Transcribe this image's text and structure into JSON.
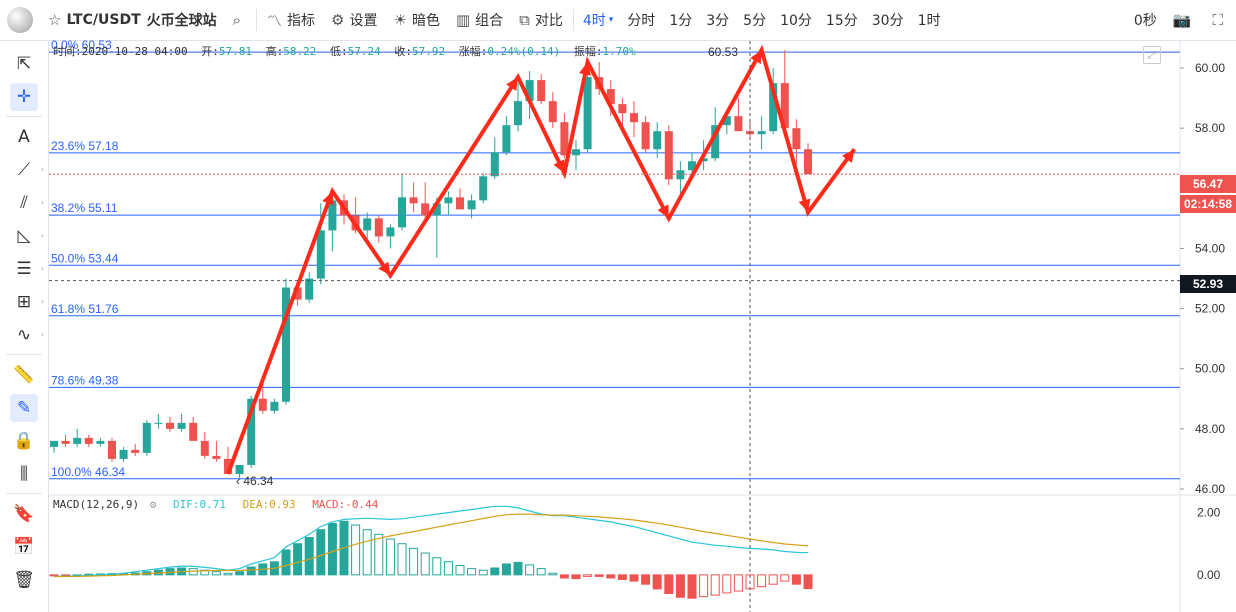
{
  "toolbar": {
    "symbol": "LTC/USDT",
    "exchange": "火币全球站",
    "indicators": "指标",
    "settings": "设置",
    "dark": "暗色",
    "combo": "组合",
    "compare": "对比",
    "interval_selected": "4时",
    "intervals": [
      "分时",
      "1分",
      "3分",
      "5分",
      "10分",
      "15分",
      "30分",
      "1时"
    ],
    "seconds": "0秒"
  },
  "info_line": {
    "time_label": "时间:",
    "time": "2020-10-28 04:00",
    "open_label": "开:",
    "open": "57.81",
    "high_label": "高:",
    "high": "58.22",
    "low_label": "低:",
    "low": "57.24",
    "close_label": "收:",
    "close": "57.92",
    "change_label": "涨幅:",
    "change": "0.24%(0.14)",
    "amp_label": "振幅:",
    "amp": "1.70%"
  },
  "macd_legend": {
    "name": "MACD(12,26,9)",
    "dif": "DIF:0.71",
    "dea": "DEA:0.93",
    "macd": "MACD:-0.44"
  },
  "price_tags": {
    "current": "56.47",
    "countdown": "02:14:58",
    "crosshair": "52.93"
  },
  "colors": {
    "up": "#26a69a",
    "down": "#ef5350",
    "fib": "#2962ff",
    "arrow": "#ff2a1a",
    "tag_red": "#ef5350",
    "tag_dark": "#131722"
  },
  "chart_data": {
    "type": "candlestick",
    "y_axis": {
      "min": 45.8,
      "max": 60.9,
      "ticks": [
        "46.00",
        "48.00",
        "50.00",
        "52.00",
        "54.00",
        "56.00",
        "58.00",
        "60.00"
      ]
    },
    "macd_axis": {
      "min": -1.0,
      "max": 2.5,
      "ticks": [
        "0.00",
        "2.00"
      ]
    },
    "fib_levels": [
      {
        "label": "0.0% 60.53",
        "value": 60.53
      },
      {
        "label": "23.6% 57.18",
        "value": 57.18
      },
      {
        "label": "38.2% 55.11",
        "value": 55.11
      },
      {
        "label": "50.0% 53.44",
        "value": 53.44
      },
      {
        "label": "61.8% 51.76",
        "value": 51.76
      },
      {
        "label": "78.6% 49.38",
        "value": 49.38
      },
      {
        "label": "100.0% 46.34",
        "value": 46.34
      }
    ],
    "high_label": "60.53",
    "low_label": "46.34",
    "candles": [
      [
        47.4,
        47.6,
        47.2,
        47.6
      ],
      [
        47.6,
        47.8,
        47.4,
        47.5
      ],
      [
        47.5,
        48.0,
        47.4,
        47.7
      ],
      [
        47.7,
        47.8,
        47.4,
        47.5
      ],
      [
        47.5,
        47.7,
        47.4,
        47.6
      ],
      [
        47.6,
        47.7,
        46.9,
        47.0
      ],
      [
        47.0,
        47.4,
        46.9,
        47.3
      ],
      [
        47.3,
        47.5,
        47.1,
        47.2
      ],
      [
        47.2,
        48.3,
        47.1,
        48.2
      ],
      [
        48.2,
        48.5,
        48.0,
        48.2
      ],
      [
        48.2,
        48.4,
        47.9,
        48.0
      ],
      [
        48.0,
        48.5,
        47.9,
        48.2
      ],
      [
        48.2,
        48.4,
        47.6,
        47.6
      ],
      [
        47.6,
        47.9,
        47.0,
        47.1
      ],
      [
        47.1,
        47.6,
        46.9,
        47.0
      ],
      [
        47.0,
        47.4,
        46.5,
        46.5
      ],
      [
        46.5,
        46.8,
        46.3,
        46.8
      ],
      [
        46.8,
        49.1,
        46.7,
        49.0
      ],
      [
        49.0,
        49.5,
        48.5,
        48.6
      ],
      [
        48.6,
        49.0,
        48.5,
        48.9
      ],
      [
        48.9,
        53.0,
        48.8,
        52.7
      ],
      [
        52.7,
        52.8,
        52.1,
        52.3
      ],
      [
        52.3,
        53.2,
        52.2,
        53.0
      ],
      [
        53.0,
        55.5,
        52.8,
        54.6
      ],
      [
        54.6,
        55.6,
        53.9,
        55.6
      ],
      [
        55.6,
        55.8,
        54.8,
        55.1
      ],
      [
        55.1,
        55.7,
        54.5,
        54.6
      ],
      [
        54.6,
        55.2,
        54.2,
        55.0
      ],
      [
        55.0,
        55.1,
        54.2,
        54.4
      ],
      [
        54.4,
        54.8,
        54.0,
        54.7
      ],
      [
        54.7,
        56.5,
        54.6,
        55.7
      ],
      [
        55.7,
        56.2,
        55.2,
        55.5
      ],
      [
        55.5,
        56.2,
        55.0,
        55.1
      ],
      [
        55.1,
        55.7,
        53.7,
        55.5
      ],
      [
        55.5,
        55.9,
        55.1,
        55.7
      ],
      [
        55.7,
        56.0,
        55.3,
        55.3
      ],
      [
        55.3,
        55.8,
        55.0,
        55.6
      ],
      [
        55.6,
        56.5,
        55.5,
        56.4
      ],
      [
        56.4,
        57.7,
        56.3,
        57.2
      ],
      [
        57.2,
        58.4,
        57.1,
        58.1
      ],
      [
        58.1,
        59.5,
        57.9,
        58.9
      ],
      [
        58.9,
        59.9,
        58.3,
        59.6
      ],
      [
        59.6,
        59.8,
        58.8,
        58.9
      ],
      [
        58.9,
        59.2,
        58.0,
        58.2
      ],
      [
        58.2,
        58.5,
        57.0,
        57.1
      ],
      [
        57.1,
        57.6,
        56.6,
        57.3
      ],
      [
        57.3,
        59.8,
        57.2,
        59.7
      ],
      [
        59.7,
        60.2,
        59.1,
        59.3
      ],
      [
        59.3,
        59.6,
        58.4,
        58.8
      ],
      [
        58.8,
        59.0,
        58.1,
        58.5
      ],
      [
        58.5,
        58.9,
        57.7,
        58.2
      ],
      [
        58.2,
        58.4,
        57.2,
        57.3
      ],
      [
        57.3,
        58.2,
        57.0,
        57.9
      ],
      [
        57.9,
        58.1,
        56.1,
        56.3
      ],
      [
        56.3,
        56.9,
        55.6,
        56.6
      ],
      [
        56.6,
        57.2,
        56.4,
        56.9
      ],
      [
        56.9,
        57.6,
        56.6,
        57.0
      ],
      [
        57.0,
        58.7,
        56.9,
        58.1
      ],
      [
        58.1,
        58.6,
        57.8,
        58.4
      ],
      [
        58.4,
        59.0,
        58.0,
        57.9
      ],
      [
        57.9,
        58.3,
        57.6,
        57.8
      ],
      [
        57.8,
        58.4,
        57.3,
        57.9
      ],
      [
        57.9,
        60.0,
        57.8,
        59.5
      ],
      [
        59.5,
        60.6,
        57.7,
        58.0
      ],
      [
        58.0,
        58.3,
        56.8,
        57.3
      ],
      [
        57.3,
        57.5,
        56.5,
        56.47
      ]
    ],
    "macd": {
      "hist": [
        -0.02,
        -0.02,
        0.0,
        0.02,
        0.03,
        0.04,
        0.05,
        0.06,
        0.1,
        0.15,
        0.2,
        0.22,
        0.2,
        0.15,
        0.1,
        0.05,
        0.1,
        0.25,
        0.35,
        0.42,
        0.8,
        1.0,
        1.2,
        1.45,
        1.65,
        1.72,
        1.6,
        1.45,
        1.3,
        1.15,
        1.0,
        0.85,
        0.7,
        0.55,
        0.42,
        0.3,
        0.2,
        0.15,
        0.22,
        0.35,
        0.4,
        0.32,
        0.2,
        0.05,
        -0.1,
        -0.12,
        -0.05,
        -0.05,
        -0.1,
        -0.15,
        -0.2,
        -0.3,
        -0.45,
        -0.6,
        -0.72,
        -0.75,
        -0.7,
        -0.65,
        -0.58,
        -0.52,
        -0.45,
        -0.38,
        -0.3,
        -0.2,
        -0.3,
        -0.44
      ],
      "dif": [
        -0.05,
        -0.04,
        -0.03,
        -0.02,
        0.0,
        0.02,
        0.05,
        0.1,
        0.15,
        0.2,
        0.25,
        0.28,
        0.27,
        0.24,
        0.2,
        0.15,
        0.2,
        0.35,
        0.45,
        0.55,
        0.9,
        1.1,
        1.3,
        1.55,
        1.7,
        1.78,
        1.8,
        1.82,
        1.8,
        1.78,
        1.8,
        1.85,
        1.9,
        1.95,
        2.0,
        2.05,
        2.1,
        2.15,
        2.2,
        2.2,
        2.15,
        2.05,
        1.95,
        1.9,
        1.9,
        1.85,
        1.8,
        1.75,
        1.7,
        1.62,
        1.55,
        1.45,
        1.35,
        1.25,
        1.15,
        1.05,
        1.0,
        0.95,
        0.92,
        0.88,
        0.85,
        0.83,
        0.8,
        0.75,
        0.72,
        0.71
      ],
      "dea": [
        -0.06,
        -0.05,
        -0.05,
        -0.04,
        -0.03,
        -0.02,
        0.0,
        0.02,
        0.04,
        0.06,
        0.08,
        0.1,
        0.12,
        0.13,
        0.14,
        0.14,
        0.14,
        0.16,
        0.18,
        0.21,
        0.3,
        0.4,
        0.5,
        0.62,
        0.75,
        0.87,
        0.98,
        1.08,
        1.17,
        1.25,
        1.32,
        1.39,
        1.46,
        1.53,
        1.6,
        1.67,
        1.74,
        1.81,
        1.88,
        1.93,
        1.95,
        1.95,
        1.93,
        1.92,
        1.92,
        1.9,
        1.88,
        1.86,
        1.83,
        1.8,
        1.76,
        1.71,
        1.66,
        1.6,
        1.53,
        1.46,
        1.39,
        1.33,
        1.27,
        1.21,
        1.15,
        1.09,
        1.04,
        0.99,
        0.96,
        0.93
      ]
    }
  }
}
